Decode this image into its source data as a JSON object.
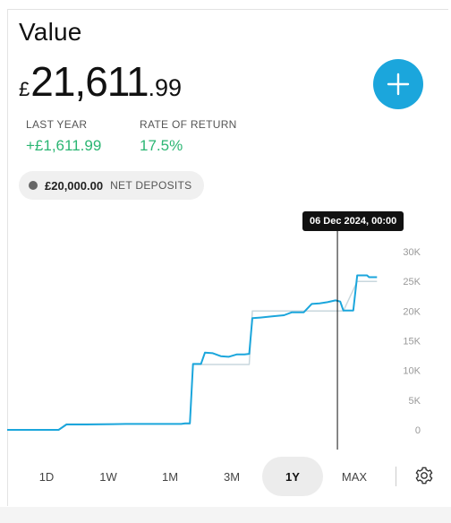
{
  "header": {
    "title": "Value",
    "currency_symbol": "£",
    "value_integer": "21,611",
    "value_decimal": ".99"
  },
  "stats": {
    "last_year_label": "LAST YEAR",
    "last_year_value": "+£1,611.99",
    "rate_label": "RATE OF RETURN",
    "rate_value": "17.5%"
  },
  "deposits": {
    "amount": "£20,000.00",
    "label": "NET DEPOSITS"
  },
  "tooltip": "06 Dec 2024, 00:00",
  "colors": {
    "accent": "#1ba6dc",
    "positive": "#2bb673",
    "line": "#1ba6dc",
    "deposit_line": "#c8d7dd"
  },
  "chart_data": {
    "type": "line",
    "y_ticks": [
      "30K",
      "25K",
      "20K",
      "15K",
      "10K",
      "5K",
      "0"
    ],
    "ylim": [
      0,
      30000
    ],
    "series": [
      {
        "values": [
          [
            0,
            0
          ],
          [
            0.13,
            0
          ],
          [
            0.15,
            900
          ],
          [
            0.2,
            900
          ],
          [
            0.3,
            1000
          ],
          [
            0.44,
            1000
          ],
          [
            0.45,
            1100
          ],
          [
            0.462,
            1100
          ],
          [
            0.47,
            11100
          ],
          [
            0.49,
            11100
          ],
          [
            0.5,
            13000
          ],
          [
            0.52,
            12900
          ],
          [
            0.54,
            12400
          ],
          [
            0.56,
            12300
          ],
          [
            0.58,
            12700
          ],
          [
            0.6,
            12700
          ],
          [
            0.612,
            12800
          ],
          [
            0.62,
            18800
          ],
          [
            0.64,
            18900
          ],
          [
            0.67,
            19100
          ],
          [
            0.7,
            19300
          ],
          [
            0.72,
            19800
          ],
          [
            0.75,
            19800
          ],
          [
            0.77,
            21200
          ],
          [
            0.79,
            21300
          ],
          [
            0.81,
            21500
          ],
          [
            0.83,
            21800
          ],
          [
            0.842,
            21600
          ],
          [
            0.85,
            20100
          ],
          [
            0.875,
            20100
          ],
          [
            0.885,
            26000
          ],
          [
            0.91,
            26000
          ],
          [
            0.915,
            25700
          ],
          [
            0.935,
            25700
          ]
        ]
      },
      {
        "values": [
          [
            0,
            0
          ],
          [
            0.13,
            0
          ],
          [
            0.15,
            1000
          ],
          [
            0.462,
            1000
          ],
          [
            0.47,
            11000
          ],
          [
            0.612,
            11000
          ],
          [
            0.62,
            20000
          ],
          [
            0.85,
            20000
          ],
          [
            0.885,
            25000
          ],
          [
            0.935,
            25000
          ]
        ]
      }
    ],
    "cursor_x": 0.835
  },
  "tabs": [
    {
      "label": "1D"
    },
    {
      "label": "1W"
    },
    {
      "label": "1M"
    },
    {
      "label": "3M"
    },
    {
      "label": "1Y",
      "active": true
    },
    {
      "label": "MAX"
    }
  ]
}
